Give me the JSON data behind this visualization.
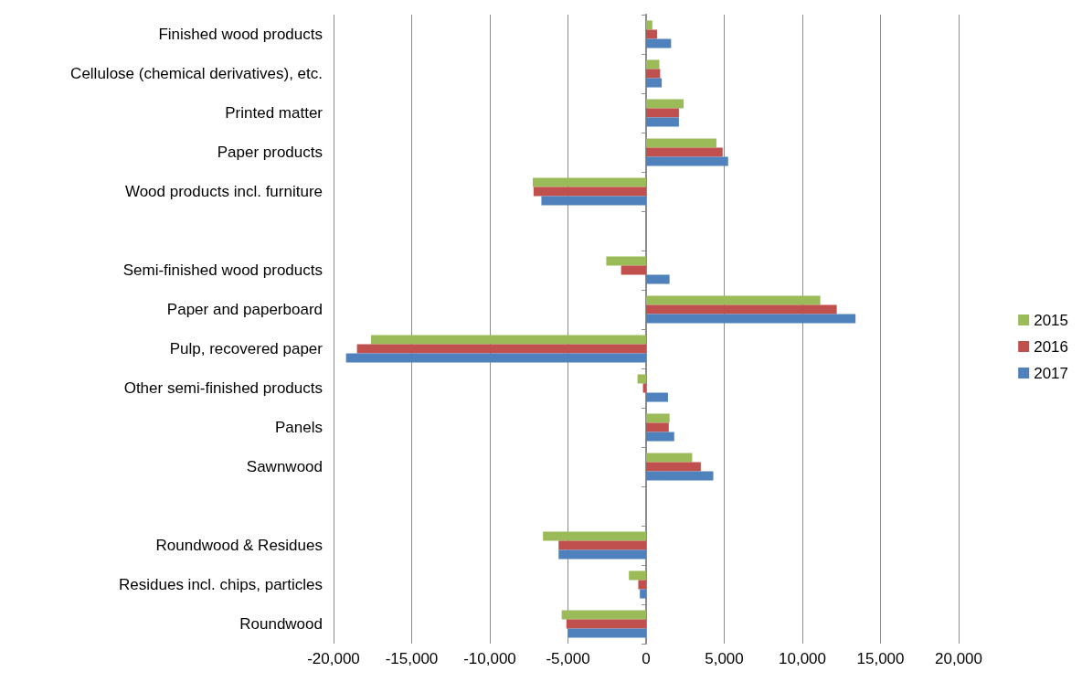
{
  "chart_data": {
    "type": "bar",
    "orientation": "horizontal",
    "categories": [
      "Finished wood products",
      "Cellulose (chemical derivatives), etc.",
      "Printed matter",
      "Paper products",
      "Wood products incl. furniture",
      null,
      "Semi-finished wood products",
      "Paper and paperboard",
      "Pulp, recovered paper",
      "Other semi-finished products",
      "Panels",
      "Sawnwood",
      null,
      "Roundwood & Residues",
      "Residues incl. chips, particles",
      "Roundwood"
    ],
    "series": [
      {
        "name": "2015",
        "color": "#9bbb59",
        "values": [
          400,
          850,
          2400,
          4500,
          -7250,
          null,
          -2550,
          11150,
          -17600,
          -550,
          1500,
          2950,
          null,
          -6600,
          -1100,
          -5400
        ]
      },
      {
        "name": "2016",
        "color": "#c0504d",
        "values": [
          700,
          900,
          2100,
          4900,
          -7200,
          null,
          -1600,
          12200,
          -18500,
          -200,
          1450,
          3500,
          null,
          -5600,
          -500,
          -5100
        ]
      },
      {
        "name": "2017",
        "color": "#4f81bd",
        "values": [
          1600,
          1000,
          2100,
          5250,
          -6700,
          null,
          1500,
          13400,
          -19200,
          1400,
          1800,
          4300,
          null,
          -5600,
          -400,
          -5000
        ]
      }
    ],
    "xlim": [
      -20000,
      20000
    ],
    "xticks": [
      {
        "value": -20000,
        "label": "-20,000"
      },
      {
        "value": -15000,
        "label": "-15,000"
      },
      {
        "value": -10000,
        "label": "-10,000"
      },
      {
        "value": -5000,
        "label": "-5,000"
      },
      0,
      {
        "value": 5000,
        "label": "5,000"
      },
      {
        "value": 10000,
        "label": "10,000"
      },
      {
        "value": 15000,
        "label": "15,000"
      },
      {
        "value": 20000,
        "label": "20,000"
      }
    ],
    "grid": "x",
    "legend": "right"
  }
}
